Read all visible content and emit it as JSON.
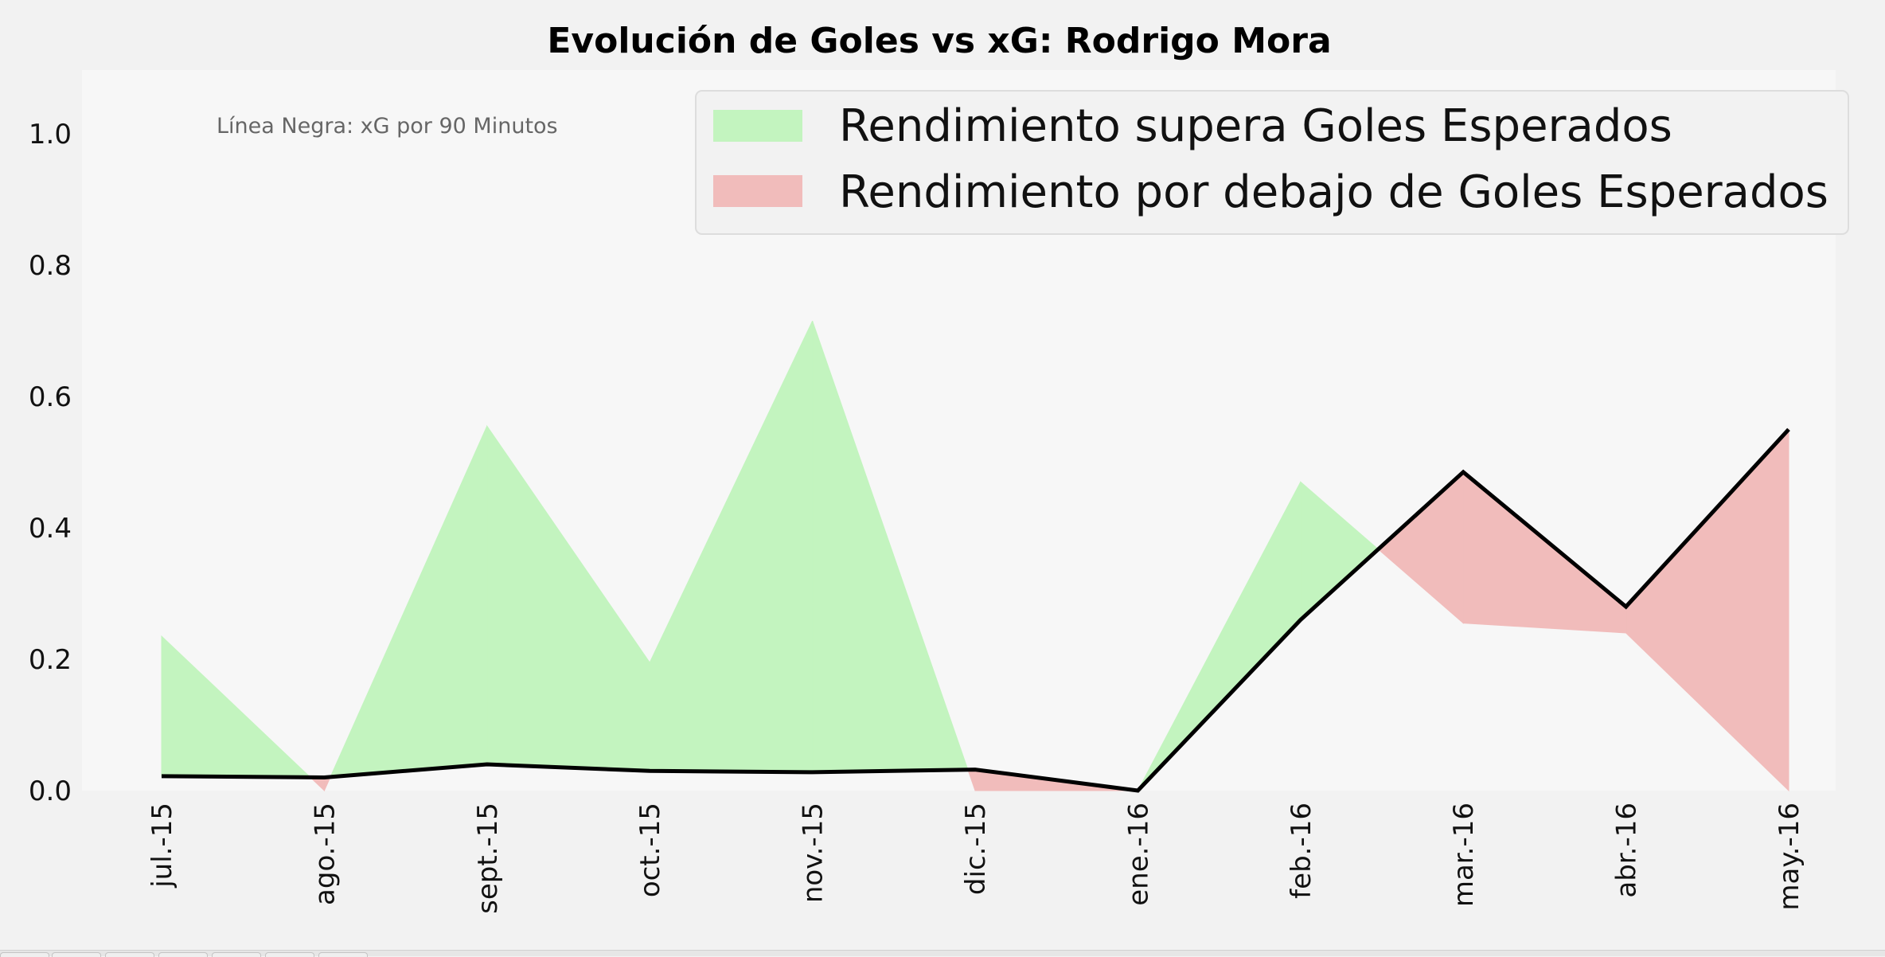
{
  "chart_data": {
    "type": "area",
    "title": "Evolución de Goles vs xG: Rodrigo Mora",
    "xlabel": "",
    "ylabel": "",
    "categories": [
      "jul.-15",
      "ago.-15",
      "sept.-15",
      "oct.-15",
      "nov.-15",
      "dic.-15",
      "ene.-16",
      "feb.-16",
      "mar.-16",
      "abr.-16",
      "may.-16"
    ],
    "series": [
      {
        "values": [
          0.235,
          0.0,
          0.555,
          0.195,
          0.715,
          0.0,
          0.0,
          0.47,
          0.255,
          0.24,
          0.0
        ]
      },
      {
        "values": [
          0.022,
          0.02,
          0.04,
          0.03,
          0.028,
          0.032,
          0.0,
          0.26,
          0.485,
          0.28,
          0.55
        ]
      }
    ],
    "ylim": [
      0,
      1.1
    ],
    "yticks": [
      0.0,
      0.2,
      0.4,
      0.6,
      0.8,
      1.0
    ],
    "ytick_labels": [
      "0.0",
      "0.2",
      "0.4",
      "0.6",
      "0.8",
      "1.0"
    ],
    "annotation": "Línea Negra: xG por 90 Minutos",
    "legend": {
      "placement": "top-right",
      "entries": [
        {
          "label": "Rendimiento supera Goles Esperados",
          "color": "#c3f4bf"
        },
        {
          "label": "Rendimiento por debajo de Goles Esperados",
          "color": "#f1bcbb"
        }
      ]
    },
    "colors": {
      "above": "#c3f4bf",
      "below": "#f1bcbb",
      "line": "#000000",
      "plot_background": "#f7f7f7",
      "figure_background": "#f2f2f2"
    },
    "grid": false
  }
}
